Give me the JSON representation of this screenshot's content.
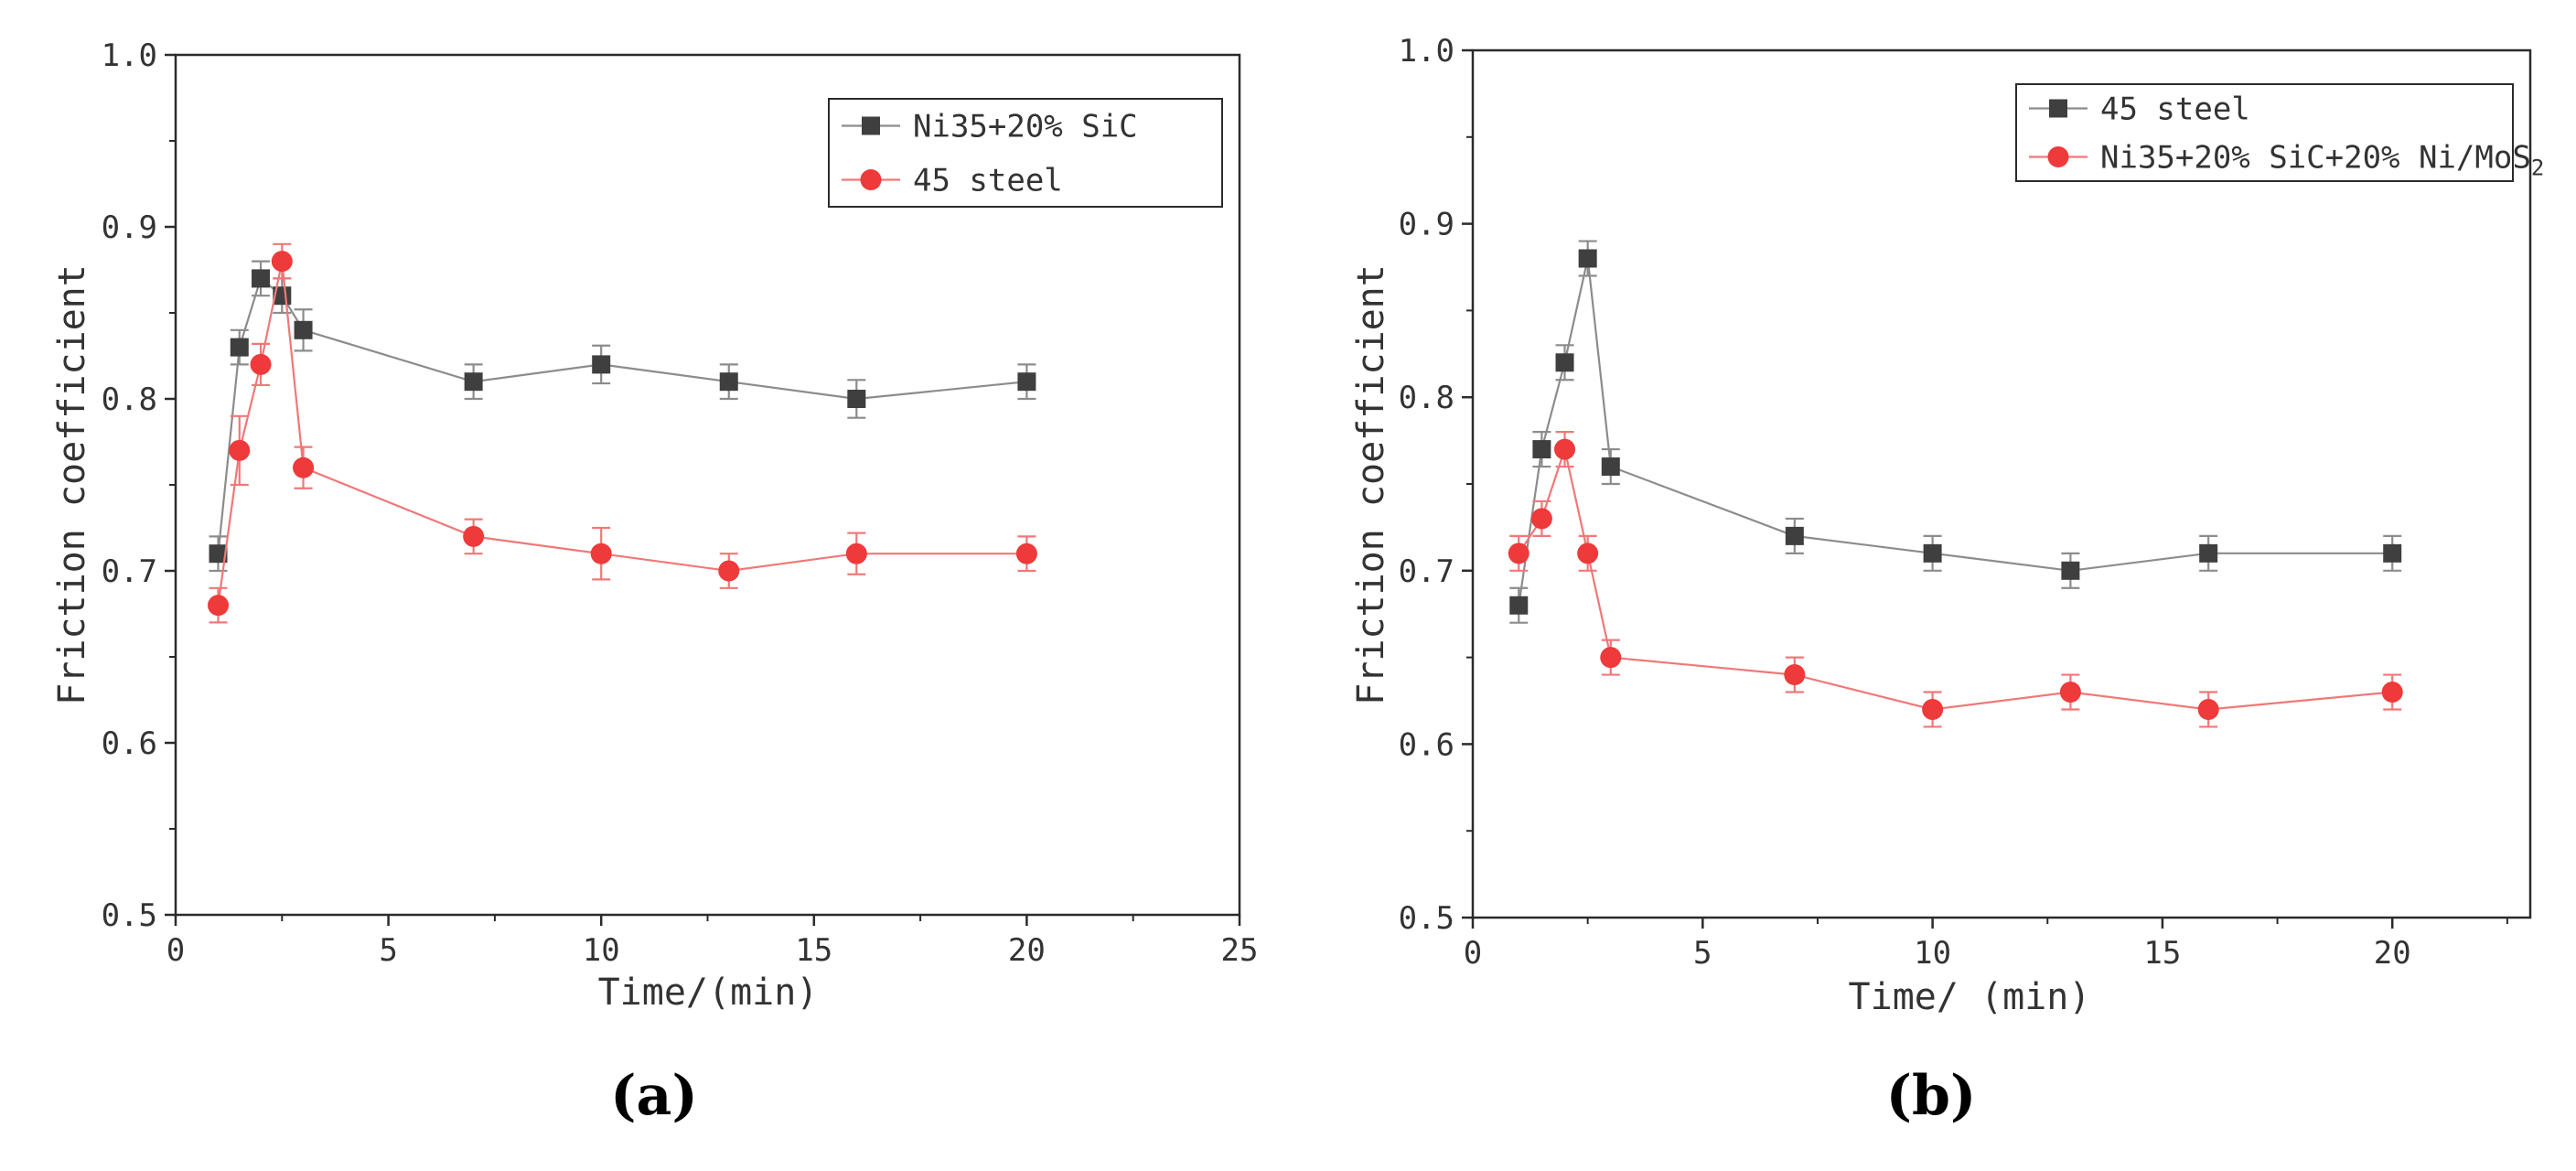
{
  "colors": {
    "series_dark": "#3f3f3f",
    "series_red": "#ee3a3a",
    "line_dark": "#8c8c8c",
    "line_red": "#f07878",
    "axis": "#2b2b2b",
    "text": "#333333"
  },
  "chart_data": [
    {
      "panel_label": "(a)",
      "type": "line",
      "xlabel": "Time/(min)",
      "ylabel": "Friction coefficient",
      "xlim": [
        0,
        25
      ],
      "ylim": [
        0.5,
        1.0
      ],
      "x_ticks": [
        "0",
        "5",
        "10",
        "15",
        "20",
        "25"
      ],
      "y_ticks": [
        "0.5",
        "0.6",
        "0.7",
        "0.8",
        "0.9",
        "1.0"
      ],
      "x_tick_values": [
        0,
        5,
        10,
        15,
        20,
        25
      ],
      "y_tick_values": [
        0.5,
        0.6,
        0.7,
        0.8,
        0.9,
        1.0
      ],
      "legend_position": "top-right",
      "series": [
        {
          "name": "Ni35+20% SiC",
          "legend_parts": [
            {
              "t": "Ni35+20% SiC"
            }
          ],
          "marker": "square",
          "color_key": "series_dark",
          "line_key": "line_dark",
          "x": [
            1,
            1.5,
            2,
            2.5,
            3,
            7,
            10,
            13,
            16,
            20
          ],
          "y": [
            0.71,
            0.83,
            0.87,
            0.86,
            0.84,
            0.81,
            0.82,
            0.81,
            0.8,
            0.81
          ],
          "err": [
            0.01,
            0.01,
            0.01,
            0.01,
            0.012,
            0.01,
            0.011,
            0.01,
            0.011,
            0.01
          ]
        },
        {
          "name": "45 steel",
          "legend_parts": [
            {
              "t": "45 steel"
            }
          ],
          "marker": "circle",
          "color_key": "series_red",
          "line_key": "line_red",
          "x": [
            1,
            1.5,
            2,
            2.5,
            3,
            7,
            10,
            13,
            16,
            20
          ],
          "y": [
            0.68,
            0.77,
            0.82,
            0.88,
            0.76,
            0.72,
            0.71,
            0.7,
            0.71,
            0.71
          ],
          "err": [
            0.01,
            0.02,
            0.012,
            0.01,
            0.012,
            0.01,
            0.015,
            0.01,
            0.012,
            0.01
          ]
        }
      ]
    },
    {
      "panel_label": "(b)",
      "type": "line",
      "xlabel": "Time/ (min)",
      "ylabel": "Friction coefficient",
      "xlim": [
        0,
        23
      ],
      "ylim": [
        0.5,
        1.0
      ],
      "x_ticks": [
        "0",
        "5",
        "10",
        "15",
        "20"
      ],
      "y_ticks": [
        "0.5",
        "0.6",
        "0.7",
        "0.8",
        "0.9",
        "1.0"
      ],
      "x_tick_values": [
        0,
        5,
        10,
        15,
        20
      ],
      "y_tick_values": [
        0.5,
        0.6,
        0.7,
        0.8,
        0.9,
        1.0
      ],
      "legend_position": "top-right",
      "series": [
        {
          "name": "45 steel",
          "legend_parts": [
            {
              "t": "45 steel"
            }
          ],
          "marker": "square",
          "color_key": "series_dark",
          "line_key": "line_dark",
          "x": [
            1,
            1.5,
            2,
            2.5,
            3,
            7,
            10,
            13,
            16,
            20
          ],
          "y": [
            0.68,
            0.77,
            0.82,
            0.88,
            0.76,
            0.72,
            0.71,
            0.7,
            0.71,
            0.71
          ],
          "err": [
            0.01,
            0.01,
            0.01,
            0.01,
            0.01,
            0.01,
            0.01,
            0.01,
            0.01,
            0.01
          ]
        },
        {
          "name": "Ni35+20% SiC+20% Ni/MoS2",
          "legend_parts": [
            {
              "t": "Ni35+20% SiC+20% Ni/MoS"
            },
            {
              "t": "2",
              "sub": true
            }
          ],
          "marker": "circle",
          "color_key": "series_red",
          "line_key": "line_red",
          "x": [
            1,
            1.5,
            2,
            2.5,
            3,
            7,
            10,
            13,
            16,
            20
          ],
          "y": [
            0.71,
            0.73,
            0.77,
            0.71,
            0.65,
            0.64,
            0.62,
            0.63,
            0.62,
            0.63
          ],
          "err": [
            0.01,
            0.01,
            0.01,
            0.01,
            0.01,
            0.01,
            0.01,
            0.01,
            0.01,
            0.01
          ]
        }
      ]
    }
  ]
}
